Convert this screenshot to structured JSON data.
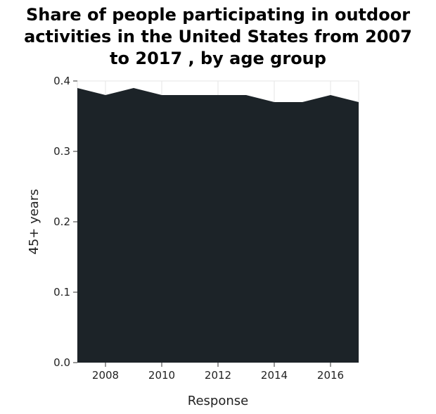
{
  "chart_data": {
    "type": "area",
    "title_lines": [
      "Share of people participating in outdoor",
      "activities in the United States from 2007",
      "to 2017 , by age group"
    ],
    "xlabel": "Response",
    "ylabel": "45+ years",
    "x": [
      2007,
      2008,
      2009,
      2010,
      2011,
      2012,
      2013,
      2014,
      2015,
      2016,
      2017
    ],
    "series": [
      {
        "values": [
          0.39,
          0.38,
          0.39,
          0.38,
          0.38,
          0.38,
          0.38,
          0.37,
          0.37,
          0.38,
          0.37
        ]
      }
    ],
    "xlim": [
      2007,
      2017
    ],
    "ylim": [
      0,
      0.4
    ],
    "xticks": [
      2008,
      2010,
      2012,
      2014,
      2016
    ],
    "yticks": [
      "0.0",
      "0.1",
      "0.2",
      "0.3",
      "0.4"
    ],
    "fill_color": "#1c2328",
    "grid": true,
    "grid_color": "#e6e6e6"
  }
}
